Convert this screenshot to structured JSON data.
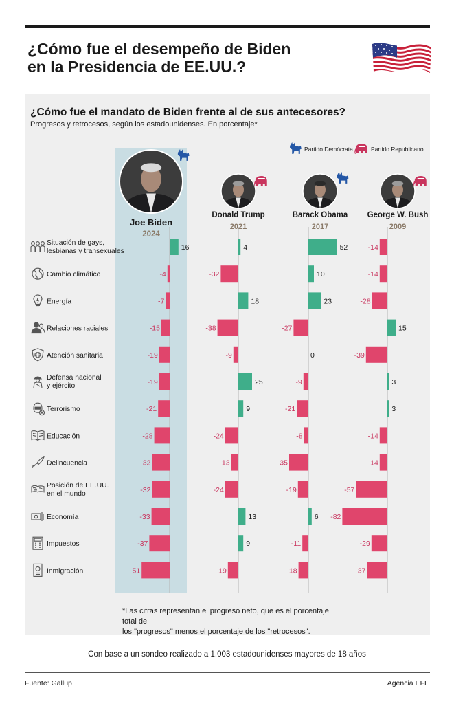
{
  "header": {
    "title_line1": "¿Cómo fue el desempeño de Biden",
    "title_line2": "en la Presidencia de EE.UU.?"
  },
  "footer": {
    "note_line1": "*Las cifras representan el progreso neto, que es el porcentaje total de",
    "note_line2": "los \"progresos\" menos el porcentaje de los \"retrocesos\".",
    "basis": "Con base a un sondeo realizado a 1.003 estadounidenses mayores de 18 años",
    "source": "Fuente: Gallup",
    "agency": "Agencia EFE"
  },
  "legend": {
    "democrat": "Partido Demócrata",
    "republican": "Partido Republicano"
  },
  "colors": {
    "positive": "#3fae8a",
    "negative": "#e0456c",
    "negative_label": "#c9355e",
    "highlight": "#c9dde3",
    "democrat": "#2457a6",
    "republican": "#c9355e",
    "year": "#8a7a68"
  },
  "icons": [
    "rainbow-people-icon",
    "globe-icon",
    "lightbulb-icon",
    "people-icon",
    "medical-shield-icon",
    "soldier-icon",
    "terrorist-icon",
    "book-icon",
    "knife-hand-icon",
    "world-map-icon",
    "money-icon",
    "calculator-icon",
    "passport-icon"
  ],
  "chart_data": {
    "type": "bar",
    "orientation": "horizontal",
    "title": "¿Cómo fue el mandato de Biden frente al de sus antecesores?",
    "subtitle": "Progresos y retrocesos, según los estadounidenses. En porcentaje*",
    "categories": [
      [
        "Situación de gays,",
        "lesbianas y transexuales"
      ],
      [
        "Cambio climático"
      ],
      [
        "Energía"
      ],
      [
        "Relaciones raciales"
      ],
      [
        "Atención sanitaria"
      ],
      [
        "Defensa nacional",
        "y ejército"
      ],
      [
        "Terrorismo"
      ],
      [
        "Educación"
      ],
      [
        "Delincuencia"
      ],
      [
        "Posición de EE.UU.",
        "en el mundo"
      ],
      [
        "Economía"
      ],
      [
        "Impuestos"
      ],
      [
        "Inmigración"
      ]
    ],
    "series": [
      {
        "name": "Joe Biden",
        "year": "2024",
        "party": "democrat",
        "values": [
          16,
          -4,
          -7,
          -15,
          -19,
          -19,
          -21,
          -28,
          -32,
          -32,
          -33,
          -37,
          -51
        ]
      },
      {
        "name": "Donald Trump",
        "year": "2021",
        "party": "republican",
        "values": [
          4,
          -32,
          18,
          -38,
          -9,
          25,
          9,
          -24,
          -13,
          -24,
          13,
          9,
          -19
        ]
      },
      {
        "name": "Barack Obama",
        "year": "2017",
        "party": "democrat",
        "values": [
          52,
          10,
          23,
          -27,
          0,
          -9,
          -21,
          -8,
          -35,
          -19,
          6,
          -11,
          -18
        ]
      },
      {
        "name": "George W. Bush",
        "year": "2009",
        "party": "republican",
        "values": [
          -14,
          -14,
          -28,
          15,
          -39,
          3,
          3,
          -14,
          -14,
          -57,
          -82,
          -29,
          -37
        ]
      }
    ],
    "highlight_series": "Joe Biden"
  }
}
